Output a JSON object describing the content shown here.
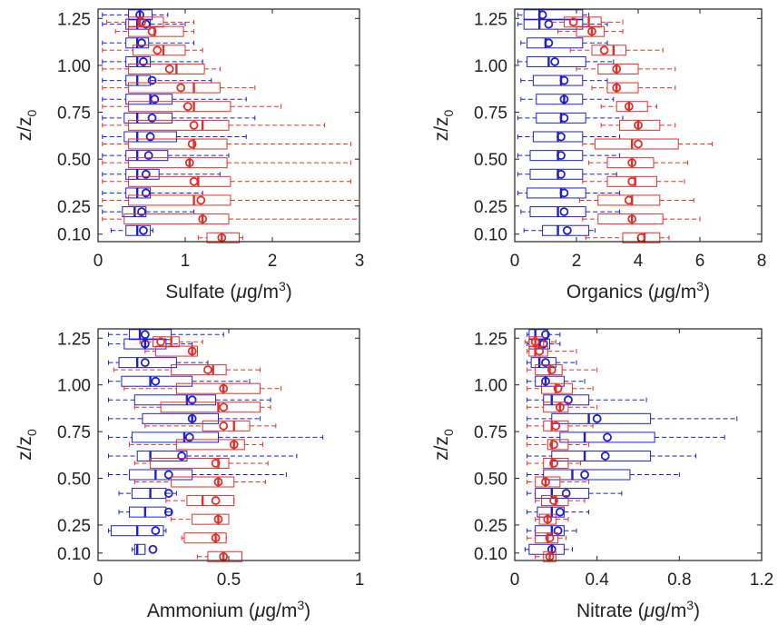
{
  "colors": {
    "series_a": "#1f1fd0",
    "series_b": "#e0302a",
    "axis": "#222222"
  },
  "chart_data": [
    {
      "type": "boxplot",
      "position": "top-left",
      "xlabel_prefix": "Sulfate (",
      "xlabel_mu": "μ",
      "xlabel_unit": "g/m",
      "xlabel_exp": "3",
      "xlabel_suffix": ")",
      "ylabel_base": "z/z",
      "ylabel_sub": "0",
      "xlim": [
        0,
        3
      ],
      "xticks": [
        0,
        1,
        2,
        3
      ],
      "xtick_labels": [
        "0",
        "1",
        "2",
        "3"
      ],
      "ylim": [
        0.06,
        1.3
      ],
      "yticks": [
        0.1,
        0.25,
        0.5,
        0.75,
        1.0,
        1.25
      ],
      "ytick_labels": [
        "0.10",
        "0.25",
        "0.50",
        "0.75",
        "1.00",
        "1.25"
      ],
      "levels": [
        0.1,
        0.2,
        0.3,
        0.4,
        0.5,
        0.6,
        0.7,
        0.8,
        0.9,
        1.0,
        1.1,
        1.2,
        1.25
      ],
      "series": [
        {
          "color": "series_a",
          "boxes": [
            [
              0.15,
              0.32,
              0.45,
              0.6,
              0.63,
              0.52
            ],
            [
              0.05,
              0.28,
              0.42,
              0.55,
              1.1,
              0.5
            ],
            [
              0.05,
              0.32,
              0.45,
              0.6,
              1.2,
              0.55
            ],
            [
              0.05,
              0.32,
              0.45,
              0.7,
              1.4,
              0.55
            ],
            [
              0.05,
              0.32,
              0.45,
              0.8,
              1.5,
              0.58
            ],
            [
              0.05,
              0.3,
              0.45,
              0.9,
              1.7,
              0.6
            ],
            [
              0.05,
              0.3,
              0.45,
              0.85,
              1.8,
              0.62
            ],
            [
              0.05,
              0.32,
              0.6,
              0.85,
              1.7,
              0.65
            ],
            [
              0.05,
              0.32,
              0.45,
              0.6,
              1.3,
              0.62
            ],
            [
              0.05,
              0.32,
              0.45,
              0.6,
              1.2,
              0.52
            ],
            [
              0.05,
              0.32,
              0.45,
              0.58,
              1.1,
              0.5
            ],
            [
              0.05,
              0.32,
              0.45,
              0.6,
              1.0,
              0.55
            ],
            [
              0.05,
              0.35,
              0.48,
              0.62,
              0.8,
              0.48
            ]
          ]
        },
        {
          "color": "series_b",
          "boxes": [
            [
              1.15,
              1.25,
              1.42,
              1.62,
              1.66,
              1.42
            ],
            [
              0.05,
              0.3,
              1.2,
              1.5,
              3.0,
              1.2
            ],
            [
              0.05,
              0.35,
              1.1,
              1.52,
              3.0,
              1.18
            ],
            [
              0.05,
              0.35,
              1.15,
              1.52,
              2.9,
              1.1
            ],
            [
              0.05,
              0.35,
              1.05,
              1.48,
              2.9,
              1.05
            ],
            [
              0.05,
              0.35,
              1.1,
              1.48,
              2.9,
              1.08
            ],
            [
              0.05,
              0.35,
              1.2,
              1.5,
              2.6,
              1.1
            ],
            [
              0.05,
              0.35,
              1.1,
              1.52,
              2.1,
              1.03
            ],
            [
              0.05,
              0.35,
              1.1,
              1.4,
              1.8,
              0.95
            ],
            [
              0.05,
              0.35,
              0.9,
              1.22,
              1.4,
              0.82
            ],
            [
              0.05,
              0.4,
              0.75,
              1.0,
              1.2,
              0.68
            ],
            [
              0.2,
              0.35,
              0.65,
              0.98,
              1.1,
              0.62
            ],
            [
              0.1,
              0.35,
              0.48,
              0.75,
              1.1,
              0.5
            ]
          ]
        }
      ]
    },
    {
      "type": "boxplot",
      "position": "top-right",
      "xlabel_prefix": "Organics (",
      "xlabel_mu": "μ",
      "xlabel_unit": "g/m",
      "xlabel_exp": "3",
      "xlabel_suffix": ")",
      "ylabel_base": "z/z",
      "ylabel_sub": "0",
      "xlim": [
        0,
        8
      ],
      "xticks": [
        0,
        2,
        4,
        6,
        8
      ],
      "xtick_labels": [
        "0",
        "2",
        "4",
        "6",
        "8"
      ],
      "ylim": [
        0.06,
        1.3
      ],
      "yticks": [
        0.1,
        0.25,
        0.5,
        0.75,
        1.0,
        1.25
      ],
      "ytick_labels": [
        "0.10",
        "0.25",
        "0.50",
        "0.75",
        "1.00",
        "1.25"
      ],
      "levels": [
        0.1,
        0.2,
        0.3,
        0.4,
        0.5,
        0.6,
        0.7,
        0.8,
        0.9,
        1.0,
        1.1,
        1.2,
        1.25
      ],
      "series": [
        {
          "color": "series_a",
          "boxes": [
            [
              0.3,
              0.9,
              1.4,
              2.4,
              2.6,
              1.7
            ],
            [
              0.2,
              0.5,
              1.4,
              2.3,
              3.4,
              1.6
            ],
            [
              0.1,
              0.4,
              1.5,
              2.3,
              3.4,
              1.6
            ],
            [
              0.1,
              0.5,
              1.4,
              2.2,
              3.3,
              1.5
            ],
            [
              0.1,
              0.5,
              1.4,
              2.2,
              3.4,
              1.5
            ],
            [
              0.1,
              0.6,
              1.4,
              2.2,
              3.4,
              1.5
            ],
            [
              0.1,
              0.7,
              1.5,
              2.3,
              3.5,
              1.6
            ],
            [
              0.2,
              0.7,
              1.6,
              2.2,
              3.2,
              1.6
            ],
            [
              0.2,
              0.6,
              1.5,
              2.2,
              3.0,
              1.6
            ],
            [
              0.1,
              0.4,
              1.1,
              2.3,
              3.2,
              1.3
            ],
            [
              0.2,
              0.4,
              1.0,
              2.2,
              3.0,
              1.1
            ],
            [
              0.1,
              0.3,
              0.8,
              2.2,
              3.0,
              1.1
            ],
            [
              0.1,
              0.3,
              0.8,
              2.2,
              2.4,
              0.9
            ]
          ]
        },
        {
          "color": "series_b",
          "boxes": [
            [
              2.3,
              3.5,
              4.2,
              4.7,
              5.0,
              4.1
            ],
            [
              2.2,
              2.7,
              3.8,
              4.8,
              6.0,
              3.8
            ],
            [
              2.1,
              2.7,
              3.8,
              4.7,
              5.8,
              3.7
            ],
            [
              2.2,
              3.0,
              3.9,
              4.6,
              5.5,
              3.8
            ],
            [
              2.4,
              3.0,
              3.8,
              4.5,
              5.6,
              3.8
            ],
            [
              2.2,
              2.6,
              3.8,
              5.3,
              6.4,
              4.0
            ],
            [
              2.8,
              3.4,
              4.0,
              4.7,
              5.2,
              4.0
            ],
            [
              2.8,
              3.3,
              3.7,
              4.3,
              4.6,
              3.7
            ],
            [
              2.5,
              3.0,
              3.3,
              4.0,
              5.2,
              3.3
            ],
            [
              2.0,
              2.7,
              3.3,
              4.0,
              5.2,
              3.3
            ],
            [
              1.8,
              2.5,
              3.2,
              3.6,
              4.8,
              2.9
            ],
            [
              1.4,
              2.0,
              2.5,
              2.9,
              3.5,
              2.5
            ],
            [
              1.2,
              1.6,
              2.4,
              2.8,
              3.5,
              1.9
            ]
          ]
        }
      ]
    },
    {
      "type": "boxplot",
      "position": "bottom-left",
      "xlabel_prefix": "Ammonium (",
      "xlabel_mu": "μ",
      "xlabel_unit": "g/m",
      "xlabel_exp": "3",
      "xlabel_suffix": ")",
      "ylabel_base": "z/z",
      "ylabel_sub": "0",
      "xlim": [
        0,
        1
      ],
      "xticks": [
        0,
        0.5,
        1
      ],
      "xtick_labels": [
        "0",
        "0.5",
        "1"
      ],
      "ylim": [
        0.06,
        1.3
      ],
      "yticks": [
        0.1,
        0.25,
        0.5,
        0.75,
        1.0,
        1.25
      ],
      "ytick_labels": [
        "0.10",
        "0.25",
        "0.50",
        "0.75",
        "1.00",
        "1.25"
      ],
      "levels": [
        0.1,
        0.2,
        0.3,
        0.4,
        0.5,
        0.6,
        0.7,
        0.8,
        0.9,
        1.0,
        1.1,
        1.2,
        1.25
      ],
      "series": [
        {
          "color": "series_a",
          "boxes": [
            [
              0.13,
              0.14,
              0.15,
              0.18,
              0.18,
              0.21
            ],
            [
              0.04,
              0.05,
              0.15,
              0.25,
              0.26,
              0.22
            ],
            [
              0.08,
              0.12,
              0.18,
              0.26,
              0.28,
              0.27
            ],
            [
              0.08,
              0.13,
              0.2,
              0.26,
              0.3,
              0.27
            ],
            [
              0.04,
              0.12,
              0.22,
              0.36,
              0.72,
              0.27
            ],
            [
              0.04,
              0.15,
              0.2,
              0.34,
              0.76,
              0.32
            ],
            [
              0.04,
              0.13,
              0.33,
              0.46,
              0.86,
              0.35
            ],
            [
              0.04,
              0.17,
              0.36,
              0.46,
              0.62,
              0.36
            ],
            [
              0.04,
              0.14,
              0.34,
              0.45,
              0.66,
              0.36
            ],
            [
              0.04,
              0.09,
              0.2,
              0.36,
              0.58,
              0.22
            ],
            [
              0.04,
              0.08,
              0.15,
              0.3,
              0.42,
              0.18
            ],
            [
              0.04,
              0.1,
              0.18,
              0.26,
              0.36,
              0.18
            ],
            [
              0.04,
              0.12,
              0.16,
              0.28,
              0.48,
              0.18
            ]
          ]
        },
        {
          "color": "series_b",
          "boxes": [
            [
              0.38,
              0.42,
              0.48,
              0.55,
              0.55,
              0.48
            ],
            [
              0.32,
              0.33,
              0.45,
              0.49,
              0.49,
              0.45
            ],
            [
              0.28,
              0.36,
              0.46,
              0.5,
              0.5,
              0.46
            ],
            [
              0.26,
              0.34,
              0.4,
              0.52,
              0.52,
              0.45
            ],
            [
              0.14,
              0.28,
              0.46,
              0.52,
              0.64,
              0.46
            ],
            [
              0.14,
              0.2,
              0.46,
              0.5,
              0.65,
              0.45
            ],
            [
              0.12,
              0.3,
              0.52,
              0.56,
              0.63,
              0.52
            ],
            [
              0.18,
              0.4,
              0.52,
              0.58,
              0.68,
              0.48
            ],
            [
              0.14,
              0.24,
              0.46,
              0.62,
              0.66,
              0.48
            ],
            [
              0.1,
              0.3,
              0.48,
              0.62,
              0.7,
              0.48
            ],
            [
              0.06,
              0.28,
              0.44,
              0.49,
              0.62,
              0.42
            ],
            [
              0.18,
              0.22,
              0.36,
              0.38,
              0.38,
              0.36
            ],
            [
              0.16,
              0.21,
              0.28,
              0.31,
              0.4,
              0.24
            ]
          ]
        }
      ]
    },
    {
      "type": "boxplot",
      "position": "bottom-right",
      "xlabel_prefix": "Nitrate (",
      "xlabel_mu": "μ",
      "xlabel_unit": "g/m",
      "xlabel_exp": "3",
      "xlabel_suffix": ")",
      "ylabel_base": "z/z",
      "ylabel_sub": "0",
      "xlim": [
        0,
        1.2
      ],
      "xticks": [
        0,
        0.4,
        0.8,
        1.2
      ],
      "xtick_labels": [
        "0",
        "0.4",
        "0.8",
        "1.2"
      ],
      "ylim": [
        0.06,
        1.3
      ],
      "yticks": [
        0.1,
        0.25,
        0.5,
        0.75,
        1.0,
        1.25
      ],
      "ytick_labels": [
        "0.10",
        "0.25",
        "0.50",
        "0.75",
        "1.00",
        "1.25"
      ],
      "levels": [
        0.1,
        0.2,
        0.3,
        0.4,
        0.5,
        0.6,
        0.7,
        0.8,
        0.9,
        1.0,
        1.1,
        1.2,
        1.25
      ],
      "series": [
        {
          "color": "series_a",
          "boxes": [
            [
              0.05,
              0.07,
              0.18,
              0.24,
              0.28,
              0.18
            ],
            [
              0.06,
              0.1,
              0.18,
              0.24,
              0.3,
              0.21
            ],
            [
              0.06,
              0.11,
              0.18,
              0.24,
              0.36,
              0.22
            ],
            [
              0.06,
              0.1,
              0.18,
              0.36,
              0.52,
              0.25
            ],
            [
              0.06,
              0.14,
              0.28,
              0.56,
              0.8,
              0.34
            ],
            [
              0.06,
              0.18,
              0.34,
              0.66,
              0.88,
              0.44
            ],
            [
              0.06,
              0.22,
              0.34,
              0.68,
              1.02,
              0.45
            ],
            [
              0.06,
              0.18,
              0.36,
              0.66,
              1.08,
              0.4
            ],
            [
              0.06,
              0.14,
              0.18,
              0.36,
              0.64,
              0.26
            ],
            [
              0.06,
              0.1,
              0.15,
              0.24,
              0.34,
              0.15
            ],
            [
              0.06,
              0.08,
              0.12,
              0.2,
              0.3,
              0.15
            ],
            [
              0.06,
              0.07,
              0.12,
              0.17,
              0.22,
              0.14
            ],
            [
              0.06,
              0.07,
              0.1,
              0.16,
              0.22,
              0.15
            ]
          ]
        },
        {
          "color": "series_b",
          "boxes": [
            [
              0.1,
              0.14,
              0.17,
              0.2,
              0.2,
              0.17
            ],
            [
              0.06,
              0.1,
              0.16,
              0.21,
              0.25,
              0.17
            ],
            [
              0.1,
              0.12,
              0.16,
              0.2,
              0.26,
              0.16
            ],
            [
              0.1,
              0.13,
              0.2,
              0.26,
              0.34,
              0.19
            ],
            [
              0.06,
              0.1,
              0.15,
              0.22,
              0.36,
              0.15
            ],
            [
              0.06,
              0.14,
              0.18,
              0.26,
              0.32,
              0.19
            ],
            [
              0.06,
              0.16,
              0.18,
              0.26,
              0.36,
              0.19
            ],
            [
              0.06,
              0.14,
              0.18,
              0.26,
              0.38,
              0.2
            ],
            [
              0.06,
              0.14,
              0.22,
              0.26,
              0.4,
              0.22
            ],
            [
              0.06,
              0.13,
              0.2,
              0.28,
              0.38,
              0.21
            ],
            [
              0.06,
              0.1,
              0.17,
              0.23,
              0.4,
              0.18
            ],
            [
              0.06,
              0.07,
              0.1,
              0.16,
              0.3,
              0.12
            ],
            [
              0.05,
              0.07,
              0.1,
              0.14,
              0.2,
              0.1
            ]
          ]
        }
      ]
    }
  ]
}
